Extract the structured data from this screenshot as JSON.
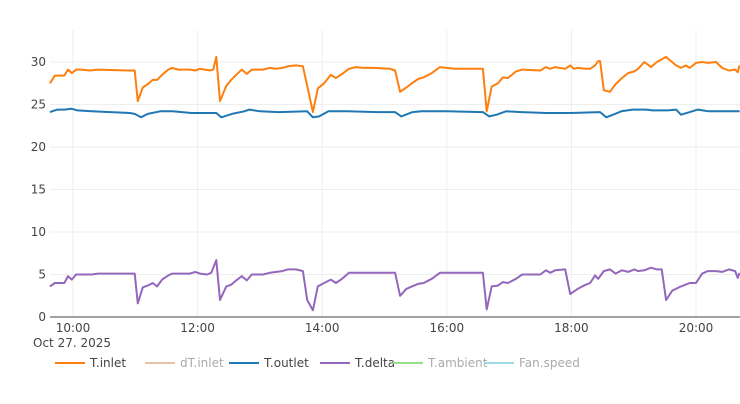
{
  "chart_data": {
    "type": "line",
    "title": "",
    "xlabel": "",
    "ylabel": "",
    "date_label": "Oct 27. 2025",
    "x_range_hours": [
      9.63,
      20.7
    ],
    "ylim": [
      0,
      34
    ],
    "grid": true,
    "legend_position": "bottom",
    "x_ticks": [
      {
        "hour": 10,
        "label": "10:00"
      },
      {
        "hour": 12,
        "label": "12:00"
      },
      {
        "hour": 14,
        "label": "14:00"
      },
      {
        "hour": 16,
        "label": "16:00"
      },
      {
        "hour": 18,
        "label": "18:00"
      },
      {
        "hour": 20,
        "label": "20:00"
      }
    ],
    "y_ticks": [
      0,
      5,
      10,
      15,
      20,
      25,
      30
    ],
    "series": [
      {
        "name": "T.inlet",
        "color": "#ff7f0e",
        "visible": true,
        "points": [
          [
            9.63,
            27.5
          ],
          [
            9.71,
            28.4
          ],
          [
            9.79,
            28.4
          ],
          [
            9.86,
            28.4
          ],
          [
            9.92,
            29.1
          ],
          [
            9.98,
            28.7
          ],
          [
            10.05,
            29.1
          ],
          [
            10.14,
            29.1
          ],
          [
            10.27,
            29.0
          ],
          [
            10.4,
            29.1
          ],
          [
            10.91,
            29.0
          ],
          [
            10.99,
            29.0
          ],
          [
            11.04,
            25.4
          ],
          [
            11.12,
            27.0
          ],
          [
            11.2,
            27.4
          ],
          [
            11.28,
            27.9
          ],
          [
            11.35,
            27.9
          ],
          [
            11.43,
            28.5
          ],
          [
            11.53,
            29.1
          ],
          [
            11.59,
            29.3
          ],
          [
            11.69,
            29.1
          ],
          [
            11.88,
            29.1
          ],
          [
            11.96,
            29.0
          ],
          [
            12.04,
            29.2
          ],
          [
            12.12,
            29.1
          ],
          [
            12.2,
            29.0
          ],
          [
            12.25,
            29.1
          ],
          [
            12.3,
            30.6
          ],
          [
            12.36,
            25.4
          ],
          [
            12.46,
            27.2
          ],
          [
            12.54,
            27.9
          ],
          [
            12.62,
            28.5
          ],
          [
            12.71,
            29.1
          ],
          [
            12.79,
            28.6
          ],
          [
            12.87,
            29.1
          ],
          [
            12.97,
            29.1
          ],
          [
            13.05,
            29.1
          ],
          [
            13.16,
            29.3
          ],
          [
            13.26,
            29.2
          ],
          [
            13.36,
            29.3
          ],
          [
            13.45,
            29.5
          ],
          [
            13.58,
            29.6
          ],
          [
            13.69,
            29.5
          ],
          [
            13.76,
            27.2
          ],
          [
            13.85,
            24.1
          ],
          [
            13.93,
            26.9
          ],
          [
            14.03,
            27.5
          ],
          [
            14.14,
            28.5
          ],
          [
            14.22,
            28.1
          ],
          [
            14.32,
            28.6
          ],
          [
            14.43,
            29.2
          ],
          [
            14.54,
            29.4
          ],
          [
            14.66,
            29.3
          ],
          [
            14.82,
            29.3
          ],
          [
            15.09,
            29.2
          ],
          [
            15.17,
            29.0
          ],
          [
            15.25,
            26.5
          ],
          [
            15.35,
            27.0
          ],
          [
            15.44,
            27.5
          ],
          [
            15.54,
            28.0
          ],
          [
            15.63,
            28.2
          ],
          [
            15.76,
            28.7
          ],
          [
            15.89,
            29.4
          ],
          [
            16.13,
            29.2
          ],
          [
            16.58,
            29.2
          ],
          [
            16.64,
            24.2
          ],
          [
            16.72,
            27.1
          ],
          [
            16.82,
            27.5
          ],
          [
            16.9,
            28.2
          ],
          [
            16.98,
            28.1
          ],
          [
            17.11,
            28.9
          ],
          [
            17.21,
            29.1
          ],
          [
            17.5,
            29.0
          ],
          [
            17.59,
            29.4
          ],
          [
            17.66,
            29.2
          ],
          [
            17.74,
            29.4
          ],
          [
            17.9,
            29.2
          ],
          [
            17.98,
            29.6
          ],
          [
            18.04,
            29.2
          ],
          [
            18.1,
            29.3
          ],
          [
            18.23,
            29.2
          ],
          [
            18.3,
            29.2
          ],
          [
            18.38,
            29.6
          ],
          [
            18.43,
            30.1
          ],
          [
            18.46,
            30.1
          ],
          [
            18.52,
            26.7
          ],
          [
            18.62,
            26.5
          ],
          [
            18.71,
            27.4
          ],
          [
            18.81,
            28.1
          ],
          [
            18.91,
            28.7
          ],
          [
            19.01,
            28.9
          ],
          [
            19.07,
            29.2
          ],
          [
            19.17,
            30.0
          ],
          [
            19.28,
            29.4
          ],
          [
            19.37,
            30.0
          ],
          [
            19.52,
            30.6
          ],
          [
            19.55,
            30.4
          ],
          [
            19.68,
            29.6
          ],
          [
            19.76,
            29.3
          ],
          [
            19.84,
            29.6
          ],
          [
            19.9,
            29.3
          ],
          [
            20.0,
            29.9
          ],
          [
            20.1,
            30.0
          ],
          [
            20.19,
            29.9
          ],
          [
            20.32,
            30.0
          ],
          [
            20.42,
            29.3
          ],
          [
            20.53,
            29.0
          ],
          [
            20.63,
            29.1
          ],
          [
            20.67,
            28.8
          ],
          [
            20.7,
            29.6
          ]
        ]
      },
      {
        "name": "dT.inlet",
        "color": "#e8c2a8",
        "visible": false,
        "points": []
      },
      {
        "name": "T.outlet",
        "color": "#1f77b4",
        "visible": true,
        "points": [
          [
            9.63,
            24.1
          ],
          [
            9.75,
            24.4
          ],
          [
            9.86,
            24.4
          ],
          [
            9.98,
            24.5
          ],
          [
            10.07,
            24.3
          ],
          [
            10.3,
            24.2
          ],
          [
            10.6,
            24.1
          ],
          [
            10.91,
            24.0
          ],
          [
            10.99,
            23.9
          ],
          [
            11.09,
            23.5
          ],
          [
            11.2,
            23.9
          ],
          [
            11.4,
            24.2
          ],
          [
            11.6,
            24.2
          ],
          [
            11.9,
            24.0
          ],
          [
            12.25,
            24.0
          ],
          [
            12.3,
            24.0
          ],
          [
            12.38,
            23.5
          ],
          [
            12.55,
            23.9
          ],
          [
            12.75,
            24.2
          ],
          [
            12.83,
            24.4
          ],
          [
            13.0,
            24.2
          ],
          [
            13.3,
            24.1
          ],
          [
            13.76,
            24.2
          ],
          [
            13.85,
            23.5
          ],
          [
            13.95,
            23.6
          ],
          [
            14.1,
            24.2
          ],
          [
            14.4,
            24.2
          ],
          [
            14.9,
            24.1
          ],
          [
            15.17,
            24.1
          ],
          [
            15.27,
            23.6
          ],
          [
            15.45,
            24.1
          ],
          [
            15.6,
            24.2
          ],
          [
            16.0,
            24.2
          ],
          [
            16.58,
            24.1
          ],
          [
            16.68,
            23.6
          ],
          [
            16.8,
            23.8
          ],
          [
            16.95,
            24.2
          ],
          [
            17.2,
            24.1
          ],
          [
            17.6,
            24.0
          ],
          [
            17.98,
            24.0
          ],
          [
            18.46,
            24.1
          ],
          [
            18.56,
            23.5
          ],
          [
            18.7,
            23.9
          ],
          [
            18.8,
            24.2
          ],
          [
            18.98,
            24.4
          ],
          [
            19.2,
            24.4
          ],
          [
            19.3,
            24.3
          ],
          [
            19.55,
            24.3
          ],
          [
            19.68,
            24.4
          ],
          [
            19.76,
            23.8
          ],
          [
            19.9,
            24.1
          ],
          [
            20.03,
            24.4
          ],
          [
            20.2,
            24.2
          ],
          [
            20.4,
            24.2
          ],
          [
            20.7,
            24.2
          ]
        ]
      },
      {
        "name": "T.delta",
        "color": "#9467bd",
        "visible": true,
        "points": [
          [
            9.63,
            3.6
          ],
          [
            9.71,
            4.0
          ],
          [
            9.79,
            4.0
          ],
          [
            9.86,
            4.0
          ],
          [
            9.92,
            4.8
          ],
          [
            9.98,
            4.4
          ],
          [
            10.05,
            5.0
          ],
          [
            10.3,
            5.0
          ],
          [
            10.4,
            5.1
          ],
          [
            10.99,
            5.1
          ],
          [
            11.04,
            1.6
          ],
          [
            11.12,
            3.5
          ],
          [
            11.2,
            3.7
          ],
          [
            11.28,
            4.0
          ],
          [
            11.35,
            3.6
          ],
          [
            11.43,
            4.4
          ],
          [
            11.53,
            4.9
          ],
          [
            11.59,
            5.1
          ],
          [
            11.88,
            5.1
          ],
          [
            11.96,
            5.3
          ],
          [
            12.04,
            5.1
          ],
          [
            12.15,
            5.0
          ],
          [
            12.22,
            5.2
          ],
          [
            12.3,
            6.7
          ],
          [
            12.36,
            2.0
          ],
          [
            12.46,
            3.6
          ],
          [
            12.54,
            3.8
          ],
          [
            12.62,
            4.3
          ],
          [
            12.71,
            4.8
          ],
          [
            12.79,
            4.3
          ],
          [
            12.87,
            5.0
          ],
          [
            13.05,
            5.0
          ],
          [
            13.16,
            5.2
          ],
          [
            13.36,
            5.4
          ],
          [
            13.45,
            5.6
          ],
          [
            13.58,
            5.6
          ],
          [
            13.69,
            5.4
          ],
          [
            13.76,
            2.0
          ],
          [
            13.85,
            0.8
          ],
          [
            13.93,
            3.6
          ],
          [
            14.03,
            4.0
          ],
          [
            14.14,
            4.4
          ],
          [
            14.22,
            4.0
          ],
          [
            14.32,
            4.5
          ],
          [
            14.43,
            5.2
          ],
          [
            14.54,
            5.2
          ],
          [
            14.82,
            5.2
          ],
          [
            15.09,
            5.2
          ],
          [
            15.17,
            5.2
          ],
          [
            15.25,
            2.5
          ],
          [
            15.35,
            3.3
          ],
          [
            15.44,
            3.6
          ],
          [
            15.54,
            3.9
          ],
          [
            15.63,
            4.0
          ],
          [
            15.76,
            4.5
          ],
          [
            15.89,
            5.2
          ],
          [
            16.13,
            5.2
          ],
          [
            16.58,
            5.2
          ],
          [
            16.64,
            0.9
          ],
          [
            16.72,
            3.6
          ],
          [
            16.82,
            3.7
          ],
          [
            16.9,
            4.1
          ],
          [
            16.98,
            4.0
          ],
          [
            17.11,
            4.5
          ],
          [
            17.21,
            5.0
          ],
          [
            17.5,
            5.0
          ],
          [
            17.59,
            5.5
          ],
          [
            17.66,
            5.2
          ],
          [
            17.74,
            5.5
          ],
          [
            17.9,
            5.6
          ],
          [
            17.98,
            2.7
          ],
          [
            18.1,
            3.3
          ],
          [
            18.23,
            3.8
          ],
          [
            18.3,
            4.0
          ],
          [
            18.38,
            4.9
          ],
          [
            18.43,
            4.5
          ],
          [
            18.52,
            5.4
          ],
          [
            18.62,
            5.6
          ],
          [
            18.71,
            5.1
          ],
          [
            18.81,
            5.5
          ],
          [
            18.91,
            5.3
          ],
          [
            19.01,
            5.6
          ],
          [
            19.07,
            5.4
          ],
          [
            19.17,
            5.5
          ],
          [
            19.28,
            5.8
          ],
          [
            19.37,
            5.6
          ],
          [
            19.45,
            5.6
          ],
          [
            19.52,
            2.0
          ],
          [
            19.62,
            3.1
          ],
          [
            19.76,
            3.6
          ],
          [
            19.9,
            4.0
          ],
          [
            20.0,
            4.0
          ],
          [
            20.1,
            5.1
          ],
          [
            20.19,
            5.4
          ],
          [
            20.32,
            5.4
          ],
          [
            20.42,
            5.3
          ],
          [
            20.53,
            5.6
          ],
          [
            20.63,
            5.4
          ],
          [
            20.67,
            4.6
          ],
          [
            20.7,
            5.2
          ]
        ]
      },
      {
        "name": "T.ambient",
        "color": "#98df8a",
        "visible": false,
        "points": []
      },
      {
        "name": "Fan.speed",
        "color": "#9edae5",
        "visible": false,
        "points": []
      }
    ]
  },
  "legend": {
    "items": [
      {
        "label": "T.inlet",
        "color": "#ff7f0e",
        "visible": true
      },
      {
        "label": "dT.inlet",
        "color": "#e8c2a8",
        "visible": false
      },
      {
        "label": "T.outlet",
        "color": "#1f77b4",
        "visible": true
      },
      {
        "label": "T.delta",
        "color": "#9467bd",
        "visible": true
      },
      {
        "label": "T.ambient",
        "color": "#98df8a",
        "visible": false
      },
      {
        "label": "Fan.speed",
        "color": "#9edae5",
        "visible": false
      }
    ]
  }
}
